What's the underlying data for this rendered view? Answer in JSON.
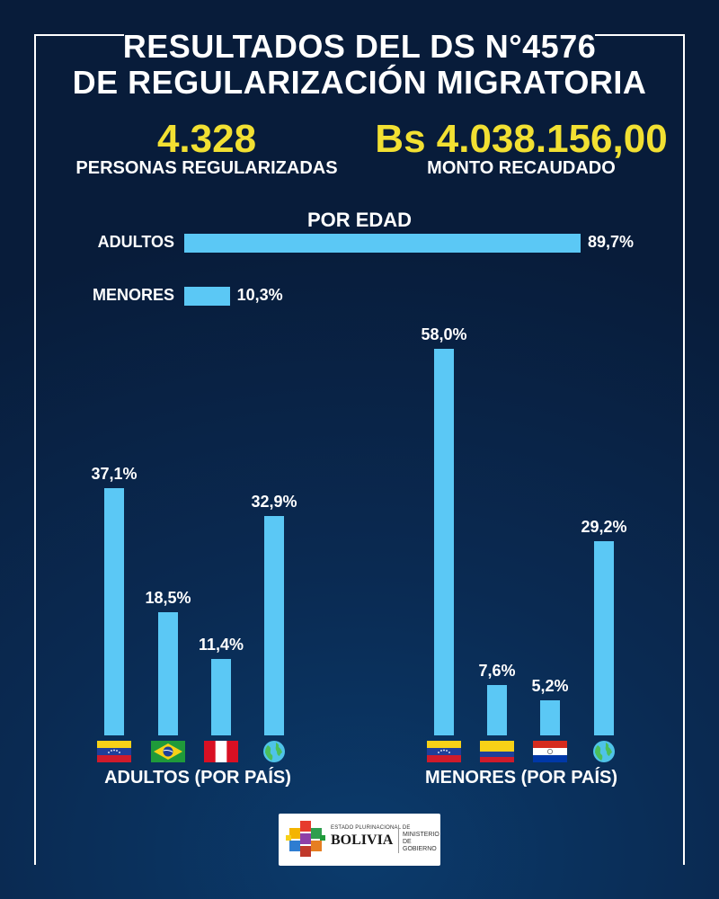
{
  "title_line1": "RESULTADOS DEL DS N°4576",
  "title_line2": "DE REGULARIZACIÓN MIGRATORIA",
  "stats": {
    "persons_value": "4.328",
    "persons_label": "PERSONAS REGULARIZADAS",
    "amount_value": "Bs 4.038.156,00",
    "amount_label": "MONTO RECAUDADO"
  },
  "colors": {
    "bar": "#5bc8f5",
    "highlight": "#f2e032",
    "background": "#0a2a52"
  },
  "chart_data": [
    {
      "type": "bar",
      "orientation": "horizontal",
      "title": "POR EDAD",
      "categories": [
        "ADULTOS",
        "MENORES"
      ],
      "values": [
        89.7,
        10.3
      ],
      "value_labels": [
        "89,7%",
        "10,3%"
      ]
    },
    {
      "type": "bar",
      "orientation": "vertical",
      "xlabel": "ADULTOS (POR PAÍS)",
      "categories": [
        "venezuela-flag-icon",
        "brazil-flag-icon",
        "peru-flag-icon",
        "globe-icon"
      ],
      "values": [
        37.1,
        18.5,
        11.4,
        32.9
      ],
      "value_labels": [
        "37,1%",
        "18,5%",
        "11,4%",
        "32,9%"
      ]
    },
    {
      "type": "bar",
      "orientation": "vertical",
      "xlabel": "MENORES (POR PAÍS)",
      "categories": [
        "venezuela-flag-icon",
        "colombia-flag-icon",
        "paraguay-flag-icon",
        "globe-icon"
      ],
      "values": [
        58.0,
        7.6,
        5.2,
        29.2
      ],
      "value_labels": [
        "58,0%",
        "7,6%",
        "5,2%",
        "29,2%"
      ]
    }
  ],
  "logo": {
    "small_text": "ESTADO PLURINACIONAL DE",
    "big_text": "BOLIVIA",
    "ministry_line1": "MINISTERIO",
    "ministry_line2": "DE GOBIERNO"
  }
}
